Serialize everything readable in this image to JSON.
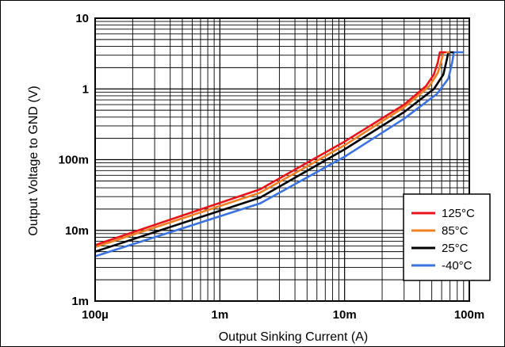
{
  "chart_data": {
    "type": "line",
    "xlabel": "Output Sinking Current (A)",
    "ylabel": "Output Voltage to GND (V)",
    "x_scale": "log",
    "y_scale": "log",
    "xlim": [
      0.0001,
      0.1
    ],
    "ylim": [
      0.001,
      10
    ],
    "x_ticks": [
      {
        "value": 0.0001,
        "label": "100µ"
      },
      {
        "value": 0.001,
        "label": "1m"
      },
      {
        "value": 0.01,
        "label": "10m"
      },
      {
        "value": 0.1,
        "label": "100m"
      }
    ],
    "y_ticks": [
      {
        "value": 0.001,
        "label": "1m"
      },
      {
        "value": 0.01,
        "label": "10m"
      },
      {
        "value": 0.1,
        "label": "100m"
      },
      {
        "value": 1,
        "label": "1"
      },
      {
        "value": 10,
        "label": "10"
      }
    ],
    "grid": true,
    "legend_position": "bottom-right",
    "series": [
      {
        "name": "125°C",
        "color": "#e8141b",
        "points": [
          [
            0.0001,
            0.0062
          ],
          [
            0.0021,
            0.038
          ],
          [
            0.01,
            0.18
          ],
          [
            0.03,
            0.6
          ],
          [
            0.045,
            1.1
          ],
          [
            0.052,
            1.6
          ],
          [
            0.056,
            2.4
          ],
          [
            0.058,
            3.3
          ],
          [
            0.065,
            3.3
          ]
        ]
      },
      {
        "name": "85°C",
        "color": "#f07f22",
        "points": [
          [
            0.0001,
            0.0058
          ],
          [
            0.0021,
            0.034
          ],
          [
            0.01,
            0.16
          ],
          [
            0.03,
            0.55
          ],
          [
            0.048,
            1.1
          ],
          [
            0.056,
            1.7
          ],
          [
            0.06,
            2.6
          ],
          [
            0.062,
            3.3
          ],
          [
            0.07,
            3.3
          ]
        ]
      },
      {
        "name": "25°C",
        "color": "#000000",
        "points": [
          [
            0.0001,
            0.005
          ],
          [
            0.0021,
            0.029
          ],
          [
            0.01,
            0.14
          ],
          [
            0.03,
            0.47
          ],
          [
            0.052,
            1.0
          ],
          [
            0.062,
            1.6
          ],
          [
            0.066,
            2.6
          ],
          [
            0.068,
            3.3
          ],
          [
            0.075,
            3.3
          ]
        ]
      },
      {
        "name": "-40°C",
        "color": "#3a73e0",
        "points": [
          [
            0.0001,
            0.0043
          ],
          [
            0.0021,
            0.024
          ],
          [
            0.01,
            0.11
          ],
          [
            0.03,
            0.38
          ],
          [
            0.055,
            0.85
          ],
          [
            0.068,
            1.4
          ],
          [
            0.073,
            2.4
          ],
          [
            0.075,
            3.3
          ],
          [
            0.09,
            3.3
          ]
        ]
      }
    ]
  }
}
